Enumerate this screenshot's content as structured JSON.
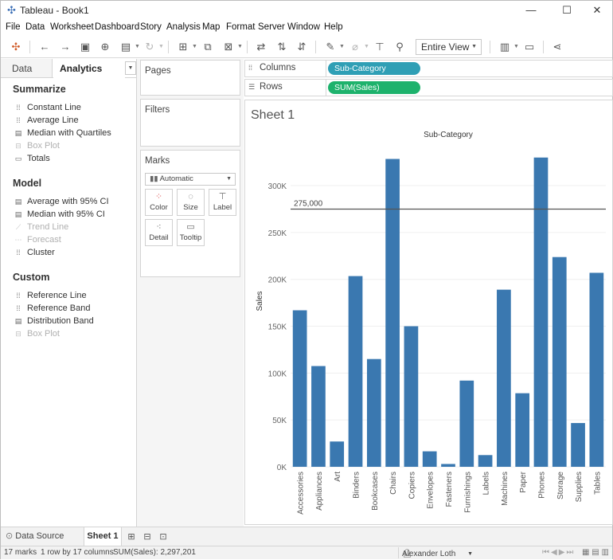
{
  "window": {
    "title": "Tableau - Book1",
    "minimize_icon": "—",
    "maximize_icon": "☐",
    "close_icon": "✕"
  },
  "menu": [
    "File",
    "Data",
    "Worksheet",
    "Dashboard",
    "Story",
    "Analysis",
    "Map",
    "Format",
    "Server",
    "Window",
    "Help"
  ],
  "toolbar": {
    "fit_value": "Entire View"
  },
  "left_pane": {
    "tabs": {
      "data": "Data",
      "analytics": "Analytics"
    },
    "sections": [
      {
        "title": "Summarize",
        "items": [
          {
            "label": "Constant Line",
            "icon": "constant-line-icon",
            "enabled": true
          },
          {
            "label": "Average Line",
            "icon": "average-line-icon",
            "enabled": true
          },
          {
            "label": "Median with Quartiles",
            "icon": "median-quartiles-icon",
            "enabled": true
          },
          {
            "label": "Box Plot",
            "icon": "box-plot-icon",
            "enabled": false
          },
          {
            "label": "Totals",
            "icon": "totals-icon",
            "enabled": true
          }
        ]
      },
      {
        "title": "Model",
        "items": [
          {
            "label": "Average with 95% CI",
            "icon": "average-ci-icon",
            "enabled": true
          },
          {
            "label": "Median with 95% CI",
            "icon": "median-ci-icon",
            "enabled": true
          },
          {
            "label": "Trend Line",
            "icon": "trend-line-icon",
            "enabled": false
          },
          {
            "label": "Forecast",
            "icon": "forecast-icon",
            "enabled": false
          },
          {
            "label": "Cluster",
            "icon": "cluster-icon",
            "enabled": true
          }
        ]
      },
      {
        "title": "Custom",
        "items": [
          {
            "label": "Reference Line",
            "icon": "reference-line-icon",
            "enabled": true
          },
          {
            "label": "Reference Band",
            "icon": "reference-band-icon",
            "enabled": true
          },
          {
            "label": "Distribution Band",
            "icon": "distribution-band-icon",
            "enabled": true
          },
          {
            "label": "Box Plot",
            "icon": "box-plot-icon",
            "enabled": false
          }
        ]
      }
    ]
  },
  "cards": {
    "pages": "Pages",
    "filters": "Filters",
    "marks": "Marks",
    "mark_type": "Automatic",
    "mark_buttons": {
      "color": "Color",
      "size": "Size",
      "label": "Label",
      "detail": "Detail",
      "tooltip": "Tooltip"
    }
  },
  "shelves": {
    "columns_label": "Columns",
    "columns_pill": "Sub-Category",
    "rows_label": "Rows",
    "rows_pill": "SUM(Sales)"
  },
  "sheet": {
    "title": "Sheet 1"
  },
  "colors": {
    "bar": "#3a78b0",
    "dimension_pill": "#2f9fb5",
    "measure_pill": "#1db26c",
    "reference_line": "#555555"
  },
  "chart_data": {
    "type": "bar",
    "title": "Sub-Category",
    "xlabel": "",
    "ylabel": "Sales",
    "categories": [
      "Accessories",
      "Appliances",
      "Art",
      "Binders",
      "Bookcases",
      "Chairs",
      "Copiers",
      "Envelopes",
      "Fasteners",
      "Furnishings",
      "Labels",
      "Machines",
      "Paper",
      "Phones",
      "Storage",
      "Supplies",
      "Tables"
    ],
    "values": [
      167000,
      107500,
      27000,
      203500,
      115000,
      328500,
      150000,
      16500,
      3000,
      92000,
      12500,
      189000,
      78500,
      330000,
      223800,
      46700,
      207000
    ],
    "ylim": [
      0,
      340000
    ],
    "yticks": [
      0,
      50000,
      100000,
      150000,
      200000,
      250000,
      300000
    ],
    "yticklabels": [
      "0K",
      "50K",
      "100K",
      "150K",
      "200K",
      "250K",
      "300K"
    ],
    "reference_line": {
      "value": 275000,
      "label": "275,000"
    },
    "grid": true,
    "legend": "none"
  },
  "bottom_tabs": {
    "data_source": "Data Source",
    "sheet1": "Sheet 1"
  },
  "status": {
    "marks": "17 marks",
    "dims": "1 row by 17 columns",
    "sum": "SUM(Sales): 2,297,201",
    "user": "Alexander Loth"
  }
}
